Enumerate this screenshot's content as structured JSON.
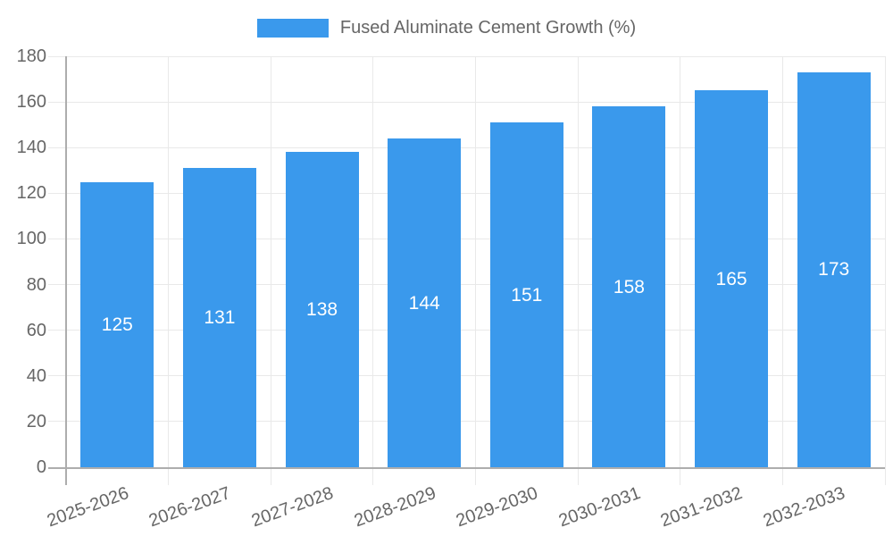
{
  "chart_data": {
    "type": "bar",
    "legend_label": "Fused Aluminate Cement Growth (%)",
    "categories": [
      "2025-2026",
      "2026-2027",
      "2027-2028",
      "2028-2029",
      "2029-2030",
      "2030-2031",
      "2031-2032",
      "2032-2033"
    ],
    "values": [
      125,
      131,
      138,
      144,
      151,
      158,
      165,
      173
    ],
    "ylim": [
      0,
      180
    ],
    "ytick_step": 20,
    "ytick_labels": [
      "0",
      "20",
      "40",
      "60",
      "80",
      "100",
      "120",
      "140",
      "160",
      "180"
    ],
    "grid": true,
    "legend_position": "top",
    "colors": {
      "bar": "#3a99ec",
      "text": "#666666",
      "grid": "#e9e9e9",
      "axis": "#adadad",
      "value_label": "#ffffff",
      "background": "#ffffff"
    }
  }
}
